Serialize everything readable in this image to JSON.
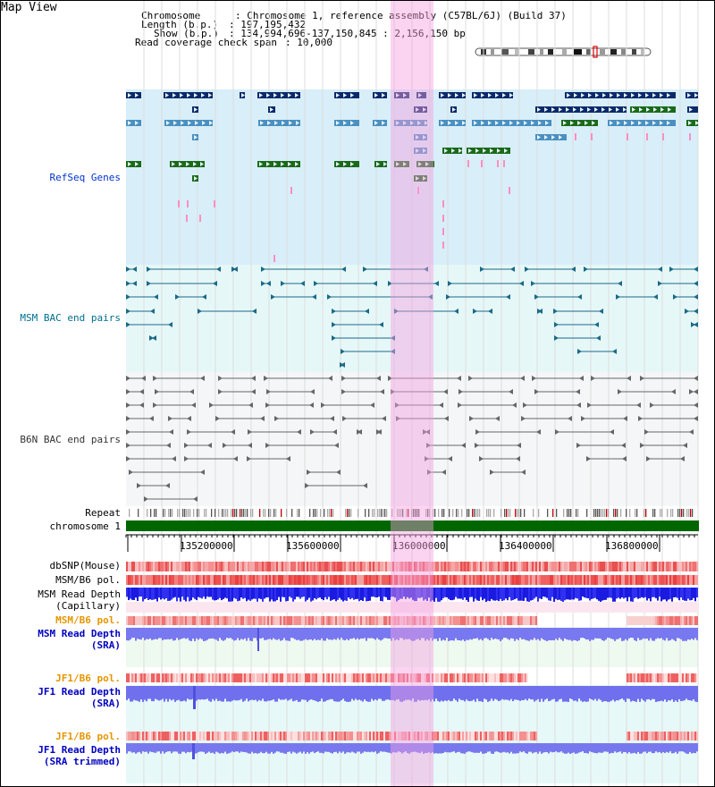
{
  "title": "Map View",
  "header": {
    "chrom_key": "Chromosome     ",
    "chrom_val": ": Chromosome 1, reference assembly (C57BL/6J) (Build 37)",
    "len_key": "Length (b.p.)",
    "len_val": ": 197,195,432",
    "show_key": "Show (b.p.)",
    "show_val": ": 134,994,696-137,150,845 : 2,156,150 bp",
    "span_key": "Read coverage check span",
    "span_val": ": 10,000"
  },
  "tracks": {
    "refseq": "RefSeq Genes",
    "msm_bac": "MSM BAC end pairs",
    "b6n_bac": "B6N BAC end pairs",
    "repeat": "Repeat",
    "chromosome": "chromosome 1",
    "dbsnp": "dbSNP(Mouse)",
    "msm_b6_pol": "MSM/B6 pol.",
    "msm_depth_cap_1": "MSM Read Depth",
    "msm_depth_cap_2": "(Capillary)",
    "msm_b6_pol_2": "MSM/B6 pol.",
    "msm_depth_sra_1": "MSM Read Depth",
    "msm_depth_sra_2": "(SRA)",
    "jf1_b6_pol": "JF1/B6 pol.",
    "jf1_depth_sra_1": "JF1 Read Depth",
    "jf1_depth_sra_2": "(SRA)",
    "jf1_b6_pol_2": "JF1/B6 pol.",
    "jf1_depth_trim_1": "JF1 Read Depth",
    "jf1_depth_trim_2": "(SRA trimmed)"
  },
  "axis": {
    "ticks": [
      "135200000",
      "135600000",
      "136000000",
      "136400000",
      "136800000"
    ]
  },
  "colors": {
    "refseq_bg": "#d8eef9",
    "msm_bg": "#e6f7f8",
    "b6n_bg": "#f4f6f8",
    "msm_label": "#006f8c",
    "b6n_label": "#333333",
    "refseq_label": "#0033cc",
    "pol_label": "#e69500",
    "depth_label": "#0000c0",
    "highlight": "#f5a0e1"
  }
}
